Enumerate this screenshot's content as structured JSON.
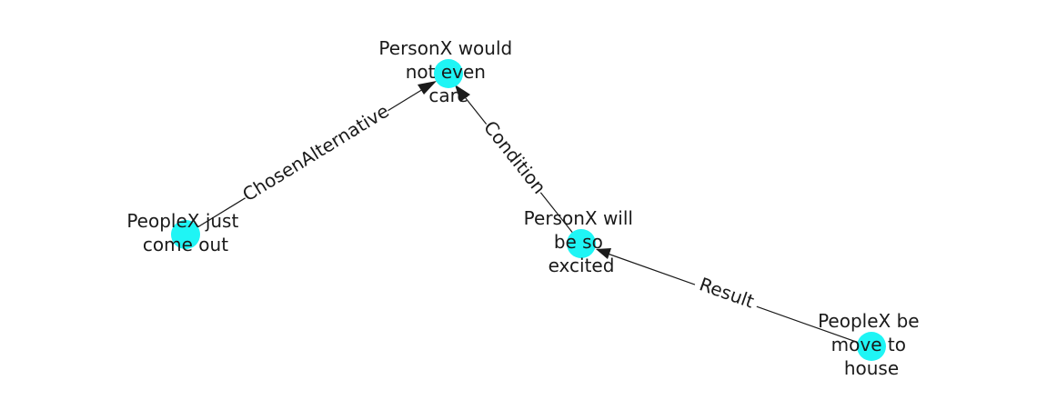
{
  "diagram": {
    "node_color": "#1ff5f5",
    "edge_color": "#1a1a1a",
    "nodes": [
      {
        "id": "n1",
        "lines": [
          "PersonX would",
          "not even",
          "care"
        ]
      },
      {
        "id": "n2",
        "lines": [
          "PeopleX just",
          "come out"
        ]
      },
      {
        "id": "n3",
        "lines": [
          "PersonX will",
          "be so",
          "excited"
        ]
      },
      {
        "id": "n4",
        "lines": [
          "PeopleX be",
          "move to",
          "house"
        ]
      }
    ],
    "edges": [
      {
        "id": "e1",
        "source": "n2",
        "target": "n1",
        "label": "ChosenAlternative"
      },
      {
        "id": "e2",
        "source": "n3",
        "target": "n1",
        "label": "Condition"
      },
      {
        "id": "e3",
        "source": "n4",
        "target": "n3",
        "label": "Result"
      }
    ]
  }
}
